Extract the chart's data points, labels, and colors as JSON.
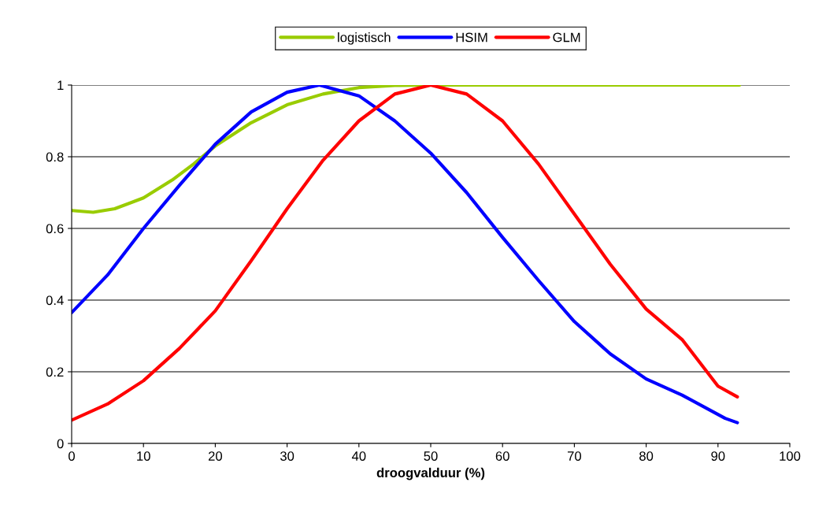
{
  "chart_data": {
    "type": "line",
    "xlabel": "droogvalduur (%)",
    "xlim": [
      0,
      100
    ],
    "xticks": [
      0,
      10,
      20,
      30,
      40,
      50,
      60,
      70,
      80,
      90,
      100
    ],
    "ylim": [
      0,
      1
    ],
    "yticks": [
      0,
      0.2,
      0.4,
      0.6,
      0.8,
      1
    ],
    "grid": "y",
    "legend": "top",
    "marker": "none",
    "line_style": "solid",
    "series": [
      {
        "name": "logistisch",
        "color": "#99cc00",
        "x": [
          0,
          3,
          6,
          10,
          14,
          17,
          20,
          25,
          30,
          35,
          40,
          45,
          50,
          60,
          70,
          80,
          93
        ],
        "values": [
          0.65,
          0.645,
          0.655,
          0.685,
          0.735,
          0.78,
          0.83,
          0.895,
          0.945,
          0.975,
          0.993,
          0.999,
          1,
          1,
          1,
          1,
          1
        ]
      },
      {
        "name": "HSIM",
        "color": "#0000ff",
        "x": [
          0,
          5,
          10,
          15,
          20,
          25,
          30,
          34.5,
          40,
          45,
          50,
          55,
          60,
          65,
          70,
          75,
          80,
          85,
          91,
          92.7
        ],
        "values": [
          0.365,
          0.47,
          0.6,
          0.72,
          0.835,
          0.925,
          0.98,
          1.0,
          0.97,
          0.9,
          0.81,
          0.7,
          0.575,
          0.455,
          0.34,
          0.25,
          0.18,
          0.135,
          0.07,
          0.058
        ]
      },
      {
        "name": "GLM",
        "color": "#ff0000",
        "x": [
          0,
          5,
          10,
          15,
          20,
          25,
          30,
          35,
          40,
          45,
          50,
          55,
          60,
          65,
          70,
          75,
          80,
          85,
          90,
          92.7
        ],
        "values": [
          0.065,
          0.11,
          0.175,
          0.265,
          0.37,
          0.51,
          0.655,
          0.79,
          0.9,
          0.975,
          1.0,
          0.975,
          0.9,
          0.78,
          0.64,
          0.5,
          0.375,
          0.29,
          0.16,
          0.13
        ]
      }
    ]
  }
}
